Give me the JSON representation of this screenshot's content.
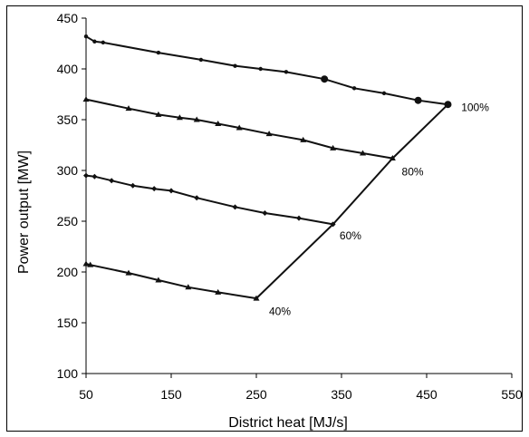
{
  "chart_data": {
    "type": "line",
    "title": "",
    "xlabel": "District heat [MJ/s]",
    "ylabel": "Power output [MW]",
    "xlim": [
      50,
      550
    ],
    "ylim": [
      100,
      450
    ],
    "xticks": [
      50,
      150,
      250,
      350,
      450,
      550
    ],
    "yticks": [
      100,
      150,
      200,
      250,
      300,
      350,
      400,
      450
    ],
    "grid": false,
    "legend": "none",
    "series": [
      {
        "name": "100%",
        "points": [
          [
            50,
            432
          ],
          [
            60,
            427
          ],
          [
            70,
            426
          ],
          [
            135,
            416
          ],
          [
            185,
            409
          ],
          [
            225,
            403
          ],
          [
            255,
            400
          ],
          [
            285,
            397
          ],
          [
            330,
            390
          ],
          [
            365,
            381
          ],
          [
            400,
            376
          ],
          [
            440,
            369
          ],
          [
            475,
            365
          ]
        ]
      },
      {
        "name": "80%",
        "points": [
          [
            50,
            370
          ],
          [
            100,
            361
          ],
          [
            135,
            355
          ],
          [
            160,
            352
          ],
          [
            180,
            350
          ],
          [
            205,
            346
          ],
          [
            230,
            342
          ],
          [
            265,
            336
          ],
          [
            305,
            330
          ],
          [
            340,
            322
          ],
          [
            375,
            317
          ],
          [
            410,
            312
          ]
        ]
      },
      {
        "name": "60%",
        "points": [
          [
            50,
            295
          ],
          [
            60,
            294
          ],
          [
            80,
            290
          ],
          [
            105,
            285
          ],
          [
            130,
            282
          ],
          [
            150,
            280
          ],
          [
            180,
            273
          ],
          [
            225,
            264
          ],
          [
            260,
            258
          ],
          [
            300,
            253
          ],
          [
            340,
            247
          ]
        ]
      },
      {
        "name": "40%",
        "points": [
          [
            50,
            208
          ],
          [
            55,
            207
          ],
          [
            100,
            199
          ],
          [
            135,
            192
          ],
          [
            170,
            185
          ],
          [
            205,
            180
          ],
          [
            250,
            174
          ]
        ]
      },
      {
        "name": "",
        "points": [
          [
            250,
            174
          ],
          [
            340,
            247
          ],
          [
            410,
            312
          ],
          [
            475,
            365
          ]
        ]
      }
    ],
    "labels": [
      {
        "text": "100%",
        "x": 480,
        "y": 362
      },
      {
        "text": "80%",
        "x": 408,
        "y": 306
      },
      {
        "text": "60%",
        "x": 335,
        "y": 243
      },
      {
        "text": "40%",
        "x": 250,
        "y": 170
      }
    ]
  }
}
